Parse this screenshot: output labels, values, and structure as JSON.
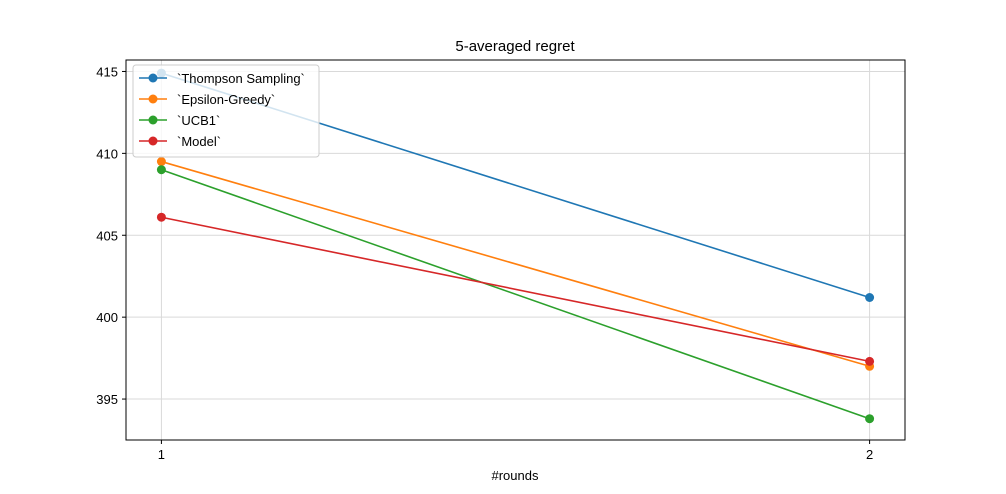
{
  "chart_data": {
    "type": "line",
    "title": "5-averaged regret",
    "xlabel": "#rounds",
    "ylabel": "",
    "x": [
      1,
      2
    ],
    "x_ticks": [
      1,
      2
    ],
    "xlim": [
      0.95,
      2.05
    ],
    "ylim": [
      392.5,
      415.7
    ],
    "y_ticks": [
      395,
      400,
      405,
      410,
      415
    ],
    "grid": true,
    "legend_position": "top-left",
    "series": [
      {
        "name": "`Thompson Sampling`",
        "color": "#1f77b4",
        "values": [
          414.9,
          401.2
        ]
      },
      {
        "name": "`Epsilon-Greedy`",
        "color": "#ff7f0e",
        "values": [
          409.5,
          397.0
        ]
      },
      {
        "name": "`UCB1`",
        "color": "#2ca02c",
        "values": [
          409.0,
          393.8
        ]
      },
      {
        "name": "`Model`",
        "color": "#d62728",
        "values": [
          406.1,
          397.3
        ]
      }
    ]
  }
}
